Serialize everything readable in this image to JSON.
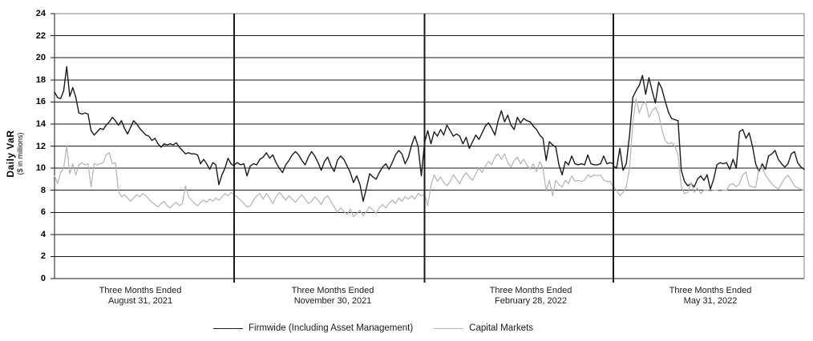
{
  "chart_data": {
    "type": "line",
    "title": "",
    "y_axis": {
      "title": "Daily VaR",
      "subtitle": "($ in millions)",
      "min": 0,
      "max": 24,
      "tick_step": 2,
      "tick_labels": [
        "0",
        "2",
        "4",
        "6",
        "8",
        "10",
        "12",
        "14",
        "16",
        "18",
        "20",
        "22",
        "24"
      ]
    },
    "x_axis": {
      "period_labels": [
        {
          "line1": "Three Months Ended",
          "line2": "August 31, 2021"
        },
        {
          "line1": "Three Months Ended",
          "line2": "November 30, 2021"
        },
        {
          "line1": "Three Months Ended",
          "line2": "February 28, 2022"
        },
        {
          "line1": "Three Months Ended",
          "line2": "May 31, 2022"
        }
      ]
    },
    "grid": true,
    "legend_position": "bottom",
    "legend": [
      {
        "label": "Firmwide (Including Asset Management)",
        "color": "#1a1a1a"
      },
      {
        "label": "Capital Markets",
        "color": "#b3b3b3"
      }
    ],
    "series": [
      {
        "name": "Firmwide (Including Asset Management)",
        "color": "#1a1a1a",
        "quarters": [
          [
            16.9,
            16.4,
            16.3,
            17.0,
            19.2,
            16.5,
            17.3,
            16.4,
            15.0,
            14.9,
            15.0,
            14.9,
            13.4,
            13.0,
            13.3,
            13.6,
            13.5,
            13.9,
            14.2,
            14.6,
            14.3,
            13.9,
            14.3,
            13.6,
            13.1,
            13.7,
            14.3,
            14.0,
            13.6,
            13.3,
            13.0,
            12.9,
            12.5,
            12.7,
            12.2,
            11.9,
            12.2,
            12.1,
            12.2,
            12.1,
            12.3,
            11.9,
            11.6,
            11.3,
            11.4,
            11.3,
            11.3,
            11.2,
            10.4,
            10.8,
            10.4,
            9.9,
            10.5,
            10.3,
            8.5,
            9.4,
            10.0,
            10.9,
            10.4,
            10.2
          ],
          [
            10.3,
            10.5,
            10.3,
            10.4,
            9.3,
            10.2,
            10.4,
            10.3,
            10.8,
            11.0,
            11.4,
            10.9,
            11.2,
            10.5,
            10.0,
            9.6,
            10.3,
            10.7,
            11.2,
            11.5,
            11.2,
            10.7,
            10.3,
            11.0,
            11.5,
            11.1,
            10.5,
            9.8,
            10.6,
            11.0,
            10.2,
            9.7,
            10.7,
            11.1,
            10.8,
            10.2,
            9.6,
            8.7,
            9.3,
            8.5,
            7.0,
            8.2,
            9.5,
            9.2,
            9.0,
            9.6,
            10.1,
            10.4,
            9.9,
            10.5,
            11.2,
            11.6,
            11.3,
            10.4,
            11.0,
            12.1,
            12.9,
            12.0,
            9.3,
            12.3
          ],
          [
            12.3,
            13.4,
            12.2,
            13.3,
            12.9,
            13.5,
            13.0,
            13.9,
            13.4,
            12.9,
            13.1,
            12.9,
            12.2,
            12.8,
            11.8,
            12.4,
            13.0,
            12.6,
            13.2,
            13.8,
            14.1,
            13.6,
            13.0,
            14.3,
            15.2,
            14.2,
            14.8,
            13.9,
            13.5,
            14.6,
            14.1,
            14.5,
            14.3,
            14.2,
            13.8,
            13.5,
            13.0,
            12.7,
            10.7,
            12.4,
            12.1,
            11.9,
            10.3,
            9.4,
            10.6,
            10.3,
            11.1,
            10.4,
            10.3,
            10.4,
            10.3,
            11.2,
            10.4,
            10.3,
            10.3,
            10.4,
            11.1,
            10.4,
            10.5,
            10.4
          ],
          [
            10.2,
            10.0,
            11.8,
            9.8,
            10.4,
            13.0,
            16.4,
            17.0,
            17.5,
            18.4,
            16.7,
            18.2,
            17.0,
            15.9,
            17.8,
            17.2,
            16.1,
            15.1,
            14.5,
            14.4,
            14.3,
            9.8,
            8.8,
            8.4,
            8.6,
            8.3,
            9.0,
            9.3,
            8.9,
            9.4,
            8.1,
            9.0,
            10.3,
            10.5,
            10.4,
            10.5,
            9.9,
            10.8,
            10.0,
            13.3,
            13.5,
            12.7,
            13.2,
            12.0,
            10.4,
            9.7,
            10.4,
            9.9,
            11.1,
            11.3,
            11.6,
            10.8,
            10.4,
            10.1,
            10.4,
            11.3,
            11.5,
            10.5,
            10.1,
            9.9
          ]
        ]
      },
      {
        "name": "Capital Markets",
        "color": "#b3b3b3",
        "quarters": [
          [
            9.3,
            8.6,
            9.6,
            10.0,
            12.0,
            9.5,
            10.4,
            9.4,
            10.3,
            10.5,
            10.3,
            10.4,
            8.3,
            10.4,
            10.3,
            10.4,
            10.5,
            11.2,
            11.4,
            10.4,
            10.5,
            7.9,
            7.4,
            7.6,
            7.3,
            7.0,
            7.3,
            7.6,
            7.4,
            7.7,
            7.5,
            7.2,
            6.9,
            6.7,
            6.5,
            6.8,
            7.0,
            6.6,
            6.4,
            6.7,
            6.9,
            6.6,
            6.8,
            8.4,
            7.4,
            7.1,
            6.8,
            6.6,
            6.9,
            7.1,
            6.9,
            7.2,
            7.0,
            7.3,
            7.1,
            7.4,
            7.7,
            7.5,
            7.8,
            7.6
          ],
          [
            7.6,
            7.4,
            7.1,
            6.8,
            6.5,
            6.6,
            7.1,
            7.5,
            7.7,
            7.2,
            7.7,
            7.3,
            6.8,
            7.4,
            7.8,
            7.5,
            7.1,
            7.5,
            7.2,
            6.9,
            7.3,
            7.6,
            7.2,
            6.8,
            7.0,
            7.4,
            7.1,
            6.7,
            7.3,
            7.5,
            7.0,
            6.5,
            6.0,
            6.4,
            6.1,
            5.8,
            6.3,
            5.6,
            5.9,
            6.2,
            5.7,
            6.1,
            6.5,
            6.2,
            5.9,
            6.4,
            6.7,
            6.4,
            6.8,
            7.1,
            6.8,
            7.3,
            7.0,
            7.4,
            7.2,
            7.5,
            7.2,
            7.7,
            7.5,
            7.6
          ],
          [
            7.6,
            6.6,
            8.4,
            9.4,
            8.8,
            9.2,
            8.7,
            8.4,
            8.8,
            9.4,
            9.0,
            8.6,
            9.2,
            9.6,
            9.2,
            8.9,
            9.5,
            10.0,
            9.6,
            10.2,
            10.6,
            10.3,
            11.0,
            11.3,
            10.8,
            11.3,
            10.5,
            10.1,
            10.7,
            11.0,
            10.4,
            10.8,
            10.3,
            9.9,
            10.4,
            9.7,
            10.6,
            10.0,
            7.9,
            8.9,
            7.5,
            8.9,
            8.5,
            8.3,
            8.9,
            8.6,
            9.3,
            8.8,
            8.9,
            8.8,
            8.9,
            9.4,
            9.2,
            9.4,
            9.3,
            9.4,
            8.9,
            8.8,
            8.8,
            8.3
          ],
          [
            8.4,
            8.0,
            7.5,
            7.8,
            8.3,
            10.0,
            14.0,
            16.3,
            15.0,
            15.8,
            16.0,
            14.6,
            15.2,
            15.5,
            14.9,
            13.5,
            12.5,
            12.2,
            12.3,
            12.0,
            11.2,
            8.3,
            7.7,
            7.8,
            8.7,
            7.8,
            8.2,
            7.7,
            8.0,
            8.0,
            7.95,
            8.0,
            8.0,
            7.95,
            8.0,
            8.0,
            8.5,
            8.6,
            8.3,
            8.6,
            9.4,
            9.65,
            8.4,
            8.3,
            8.25,
            10.0,
            10.15,
            9.4,
            8.95,
            8.6,
            8.3,
            8.1,
            8.6,
            9.1,
            9.35,
            8.9,
            8.4,
            8.2,
            8.1,
            7.95
          ]
        ]
      }
    ],
    "colors": {
      "gridline": "#1a1a1a",
      "frame_border": "#808080",
      "divider": "#1a1a1a",
      "axis": "#1a1a1a"
    }
  }
}
